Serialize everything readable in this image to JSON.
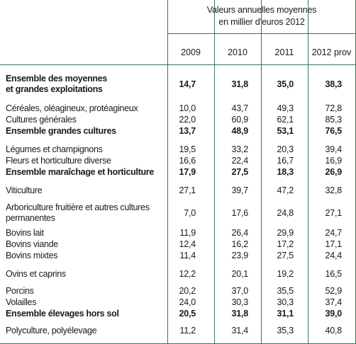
{
  "header": {
    "title_line1": "Valeurs annuelles moyennes",
    "title_line2": "en millier d’euros 2012",
    "years": [
      "2009",
      "2010",
      "2011",
      "2012 prov"
    ]
  },
  "rows": [
    {
      "label": "Ensemble des moyennes",
      "label2": "et grandes exploitations",
      "values": [
        "14,7",
        "31,8",
        "35,0",
        "38,3"
      ],
      "bold": true
    },
    {
      "label": "Céréales, oléagineux, protéagineux",
      "values": [
        "10,0",
        "43,7",
        "49,3",
        "72,8"
      ],
      "bold": false
    },
    {
      "label": "Cultures générales",
      "values": [
        "22,0",
        "60,9",
        "62,1",
        "85,3"
      ],
      "bold": false
    },
    {
      "label": "Ensemble grandes cultures",
      "values": [
        "13,7",
        "48,9",
        "53,1",
        "76,5"
      ],
      "bold": true
    },
    {
      "label": "Légumes et champignons",
      "values": [
        "19,5",
        "33,2",
        "20,3",
        "39,4"
      ],
      "bold": false
    },
    {
      "label": "Fleurs et horticulture diverse",
      "values": [
        "16,6",
        "22,4",
        "16,7",
        "16,9"
      ],
      "bold": false
    },
    {
      "label": "Ensemble maraîchage et horticulture",
      "values": [
        "17,9",
        "27,5",
        "18,3",
        "26,9"
      ],
      "bold": true
    },
    {
      "label": "Viticulture",
      "values": [
        "27,1",
        "39,7",
        "47,2",
        "32,8"
      ],
      "bold": false
    },
    {
      "label": "Arboriculture fruitière et autres cultures",
      "label2": "permanentes",
      "values": [
        "7,0",
        "17,6",
        "24,8",
        "27,1"
      ],
      "bold": false
    },
    {
      "label": "Bovins lait",
      "values": [
        "11,9",
        "26,4",
        "29,9",
        "24,7"
      ],
      "bold": false
    },
    {
      "label": "Bovins viande",
      "values": [
        "12,4",
        "16,2",
        "17,2",
        "17,1"
      ],
      "bold": false
    },
    {
      "label": "Bovins mixtes",
      "values": [
        "11,4",
        "23,9",
        "27,5",
        "24,4"
      ],
      "bold": false
    },
    {
      "label": "Ovins et caprins",
      "values": [
        "12,2",
        "20,1",
        "19,2",
        "16,5"
      ],
      "bold": false
    },
    {
      "label": "Porcins",
      "values": [
        "20,2",
        "37,0",
        "35,5",
        "52,9"
      ],
      "bold": false
    },
    {
      "label": "Volailles",
      "values": [
        "24,0",
        "30,3",
        "30,3",
        "37,4"
      ],
      "bold": false
    },
    {
      "label": "Ensemble élevages hors sol",
      "values": [
        "20,5",
        "31,8",
        "31,1",
        "39,0"
      ],
      "bold": true
    },
    {
      "label": "Polyculture, polyélevage",
      "values": [
        "11,2",
        "31,4",
        "35,3",
        "40,8"
      ],
      "bold": false
    }
  ]
}
